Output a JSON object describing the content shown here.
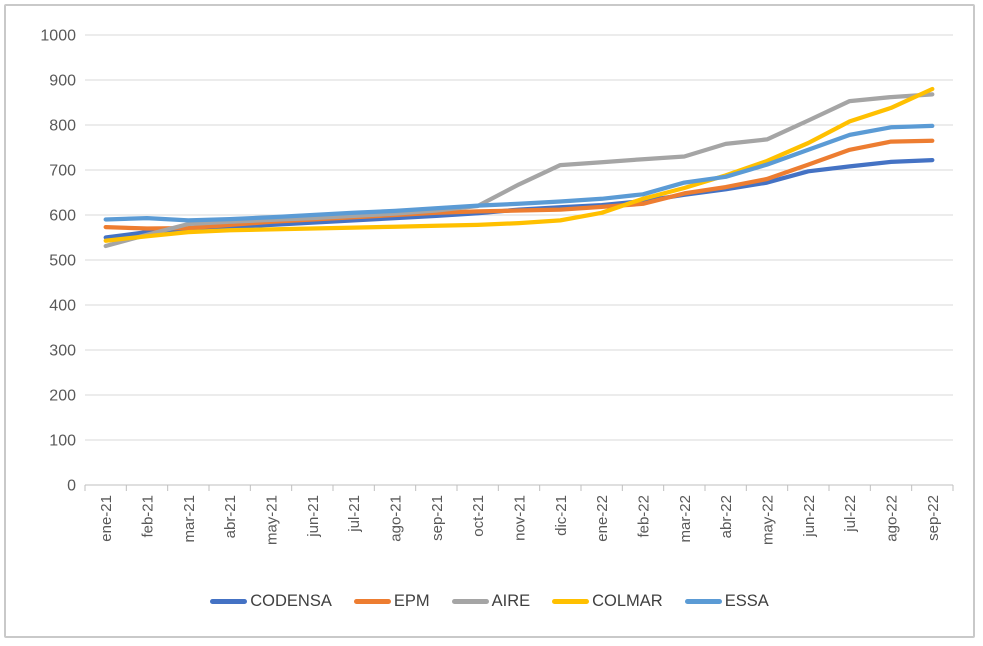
{
  "chart_data": {
    "type": "line",
    "title": "",
    "xlabel": "",
    "ylabel": "",
    "categories": [
      "ene-21",
      "feb-21",
      "mar-21",
      "abr-21",
      "may-21",
      "jun-21",
      "jul-21",
      "ago-21",
      "sep-21",
      "oct-21",
      "nov-21",
      "dic-21",
      "ene-22",
      "feb-22",
      "mar-22",
      "abr-22",
      "may-22",
      "jun-22",
      "jul-22",
      "ago-22",
      "sep-22"
    ],
    "series": [
      {
        "name": "CODENSA",
        "color": "#4472C4",
        "values": [
          550,
          562,
          568,
          573,
          578,
          583,
          588,
          593,
          598,
          604,
          612,
          617,
          622,
          631,
          645,
          657,
          672,
          697,
          708,
          718,
          722
        ]
      },
      {
        "name": "EPM",
        "color": "#ED7D31",
        "values": [
          573,
          570,
          571,
          578,
          585,
          590,
          595,
          600,
          605,
          608,
          610,
          612,
          618,
          625,
          648,
          662,
          680,
          712,
          745,
          763,
          765
        ]
      },
      {
        "name": "AIRE",
        "color": "#A5A5A5",
        "values": [
          531,
          556,
          580,
          585,
          589,
          593,
          598,
          603,
          610,
          620,
          668,
          711,
          717,
          724,
          730,
          758,
          768,
          810,
          853,
          862,
          868
        ]
      },
      {
        "name": "COLMAR",
        "color": "#FFC000",
        "values": [
          543,
          553,
          562,
          566,
          568,
          570,
          572,
          574,
          576,
          578,
          582,
          588,
          605,
          636,
          660,
          688,
          720,
          760,
          808,
          838,
          880
        ]
      },
      {
        "name": "ESSA",
        "color": "#5B9BD5",
        "values": [
          590,
          593,
          588,
          591,
          595,
          600,
          605,
          609,
          615,
          621,
          625,
          630,
          636,
          646,
          672,
          685,
          712,
          745,
          778,
          795,
          798
        ]
      }
    ],
    "y_axis": {
      "min": 0,
      "max": 1000,
      "step": 100,
      "tick_labels": [
        "0",
        "100",
        "200",
        "300",
        "400",
        "500",
        "600",
        "700",
        "800",
        "900",
        "1000"
      ]
    },
    "grid": true,
    "legend_position": "bottom",
    "style": {
      "gridline_color": "#D9D9D9",
      "axis_color": "#BFBFBF",
      "tick_text_color": "#595959",
      "legend_text_color": "#404040",
      "background": "#FFFFFF",
      "frame_border_color": "#C9C9C9",
      "line_width": 4.25
    }
  }
}
